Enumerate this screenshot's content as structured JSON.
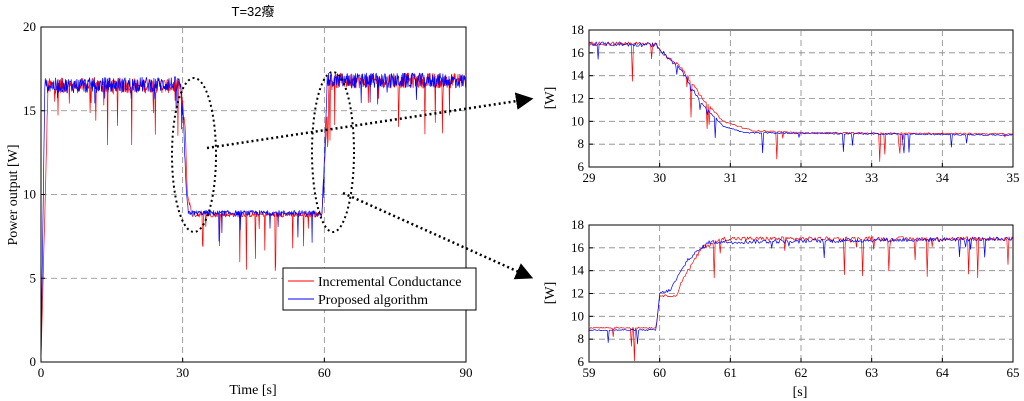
{
  "chart_data": [
    {
      "id": "main",
      "type": "line",
      "title": "T=32癈",
      "xlabel": "Time [s]",
      "ylabel": "Power output [W]",
      "xlim": [
        0,
        90
      ],
      "ylim": [
        0,
        20
      ],
      "xticks": [
        0,
        30,
        60,
        90
      ],
      "yticks": [
        0,
        5,
        10,
        15,
        20
      ],
      "grid": true,
      "legend": "bottom-right",
      "series": [
        {
          "name": "Incremental Conductance",
          "color": "#ff0000",
          "profile": [
            [
              0,
              0
            ],
            [
              1.5,
              16.5
            ],
            [
              29.5,
              16.5
            ],
            [
              30.5,
              14
            ],
            [
              31,
              10
            ],
            [
              32,
              8.8
            ],
            [
              59.5,
              8.8
            ],
            [
              60,
              12
            ],
            [
              61,
              16.8
            ],
            [
              90,
              16.8
            ]
          ]
        },
        {
          "name": "Proposed algorithm",
          "color": "#0000ff",
          "profile": [
            [
              0,
              0
            ],
            [
              0.8,
              16.5
            ],
            [
              29.5,
              16.6
            ],
            [
              30.2,
              14
            ],
            [
              30.8,
              10
            ],
            [
              31.2,
              8.9
            ],
            [
              59.5,
              8.9
            ],
            [
              60,
              12
            ],
            [
              60.6,
              16.8
            ],
            [
              90,
              16.8
            ]
          ]
        }
      ],
      "annotations": [
        "dashed ellipse around t=30 transition",
        "dashed ellipse around t=60 transition"
      ]
    },
    {
      "id": "zoom1",
      "type": "line",
      "xlabel": "",
      "ylabel": "[W]",
      "xlim": [
        29,
        35
      ],
      "ylim": [
        6,
        18
      ],
      "xticks": [
        29,
        30,
        31,
        32,
        33,
        34,
        35
      ],
      "yticks": [
        6,
        8,
        10,
        12,
        14,
        16,
        18
      ],
      "grid": true,
      "series": [
        {
          "name": "Incremental Conductance",
          "color": "#ff0000",
          "profile": [
            [
              29,
              16.8
            ],
            [
              29.95,
              16.8
            ],
            [
              30.1,
              15.6
            ],
            [
              30.3,
              14.8
            ],
            [
              30.6,
              12
            ],
            [
              30.9,
              10
            ],
            [
              31.3,
              9.2
            ],
            [
              32,
              9
            ],
            [
              35,
              8.9
            ]
          ]
        },
        {
          "name": "Proposed algorithm",
          "color": "#0000ff",
          "profile": [
            [
              29,
              16.8
            ],
            [
              29.95,
              16.7
            ],
            [
              30.1,
              15.7
            ],
            [
              30.3,
              14.5
            ],
            [
              30.6,
              11.5
            ],
            [
              30.9,
              9.6
            ],
            [
              31.2,
              9
            ],
            [
              35,
              8.8
            ]
          ]
        }
      ]
    },
    {
      "id": "zoom2",
      "type": "line",
      "xlabel": "[s]",
      "ylabel": "[W]",
      "xlim": [
        59,
        65
      ],
      "ylim": [
        6,
        18
      ],
      "xticks": [
        59,
        60,
        61,
        62,
        63,
        64,
        65
      ],
      "yticks": [
        6,
        8,
        10,
        12,
        14,
        16,
        18
      ],
      "grid": true,
      "series": [
        {
          "name": "Incremental Conductance",
          "color": "#ff0000",
          "profile": [
            [
              59,
              9
            ],
            [
              59.95,
              9
            ],
            [
              60,
              11.8
            ],
            [
              60.25,
              11.8
            ],
            [
              60.3,
              13
            ],
            [
              60.6,
              16
            ],
            [
              60.9,
              16.8
            ],
            [
              65,
              16.8
            ]
          ]
        },
        {
          "name": "Proposed algorithm",
          "color": "#0000ff",
          "profile": [
            [
              59,
              8.8
            ],
            [
              59.95,
              8.8
            ],
            [
              60,
              12
            ],
            [
              60.15,
              12.3
            ],
            [
              60.4,
              15
            ],
            [
              60.7,
              16.5
            ],
            [
              65,
              16.8
            ]
          ]
        }
      ]
    }
  ]
}
